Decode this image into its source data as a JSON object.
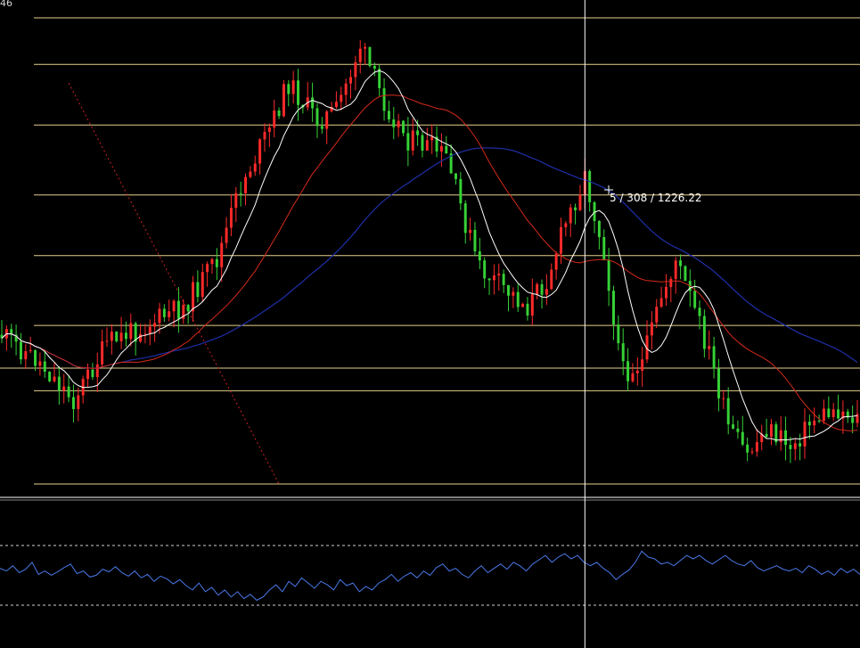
{
  "corner_label": "46",
  "crosshair_readout": "5 / 308 / 1226.22",
  "colors": {
    "background": "#000000",
    "bull_candle": "#ff2a2a",
    "bear_candle": "#36d236",
    "fib_line": "#e6cf8a",
    "ma_fast": "#ffffff",
    "ma_mid": "#d42a1a",
    "ma_slow": "#1f2fa8",
    "trendline": "#cc2222",
    "oscillator": "#4a78e8",
    "crosshair": "#ffffff",
    "separator": "#ffffff"
  },
  "chart_data": [
    {
      "type": "candlestick",
      "title": "",
      "xlabel": "",
      "ylabel": "",
      "grid": false,
      "bars": 180,
      "price_path": [
        [
          0,
          68
        ],
        [
          8,
          74
        ],
        [
          15,
          82
        ],
        [
          22,
          70
        ],
        [
          30,
          66
        ],
        [
          38,
          62
        ],
        [
          45,
          52
        ],
        [
          50,
          36
        ],
        [
          56,
          24
        ],
        [
          60,
          14
        ],
        [
          66,
          22
        ],
        [
          70,
          20
        ],
        [
          75,
          6
        ],
        [
          80,
          18
        ],
        [
          85,
          26
        ],
        [
          90,
          28
        ],
        [
          93,
          30
        ],
        [
          97,
          44
        ],
        [
          100,
          54
        ],
        [
          105,
          58
        ],
        [
          110,
          62
        ],
        [
          114,
          56
        ],
        [
          118,
          44
        ],
        [
          122,
          34
        ],
        [
          126,
          50
        ],
        [
          128,
          64
        ],
        [
          130,
          76
        ],
        [
          134,
          74
        ],
        [
          138,
          60
        ],
        [
          141,
          52
        ],
        [
          144,
          60
        ],
        [
          148,
          72
        ],
        [
          152,
          88
        ],
        [
          156,
          94
        ],
        [
          160,
          88
        ],
        [
          165,
          92
        ],
        [
          170,
          86
        ],
        [
          175,
          84
        ],
        [
          179,
          86
        ]
      ],
      "horizontal_levels": [
        0,
        10,
        23,
        38,
        51,
        66,
        80,
        100
      ],
      "overlays": [
        {
          "kind": "moving-average",
          "period": "fast",
          "color": "#ffffff"
        },
        {
          "kind": "moving-average",
          "period": "medium",
          "color": "#d42a1a"
        },
        {
          "kind": "moving-average",
          "period": "slow",
          "color": "#1f2fa8"
        },
        {
          "kind": "trendline",
          "style": "dotted",
          "color": "#cc2222"
        }
      ],
      "crosshair_bar": 122
    },
    {
      "type": "line",
      "title": "",
      "description_levels": {
        "upper_dashed": "upper",
        "lower_dashed": "lower"
      },
      "series": [
        {
          "values": [
            55,
            52,
            58,
            50,
            54,
            62,
            48,
            52,
            47,
            51,
            56,
            60,
            49,
            52,
            45,
            47,
            54,
            51,
            57,
            50,
            46,
            52,
            44,
            48,
            40,
            46,
            43,
            37,
            42,
            35,
            30,
            38,
            28,
            33,
            24,
            30,
            22,
            28,
            20,
            25,
            18,
            22,
            30,
            36,
            28,
            40,
            34,
            44,
            38,
            32,
            40,
            36,
            30,
            42,
            35,
            38,
            28,
            34,
            30,
            38,
            42,
            48,
            40,
            46,
            50,
            44,
            52,
            47,
            56,
            60,
            52,
            55,
            48,
            44,
            52,
            58,
            50,
            55,
            60,
            54,
            62,
            58,
            52,
            60,
            65,
            70,
            62,
            68,
            72,
            66,
            70,
            62,
            58,
            62,
            55,
            50,
            42,
            48,
            53,
            62,
            75,
            68,
            66,
            60,
            62,
            58,
            64,
            70,
            66,
            70,
            64,
            60,
            65,
            70,
            64,
            60,
            58,
            64,
            56,
            52,
            55,
            58,
            54,
            52,
            55,
            50,
            58,
            54,
            48,
            52,
            47,
            55,
            50,
            54,
            48
          ]
        }
      ]
    }
  ]
}
